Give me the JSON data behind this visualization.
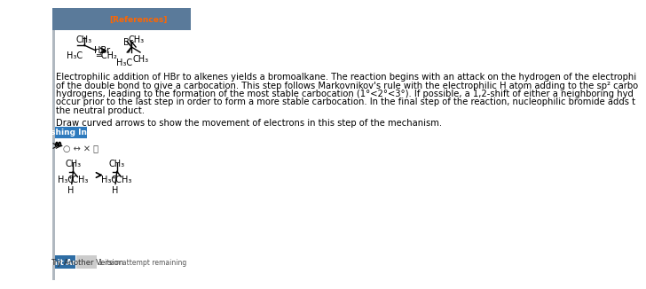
{
  "bg_color": "#f0f0f0",
  "page_bg": "#ffffff",
  "title_bar_color": "#5a7a9a",
  "title_bar_text": "[References]",
  "title_bar_text_color": "#ff6600",
  "title_bar_height": 0.08,
  "body_text_1": "Electrophilic addition of HBr to alkenes yields a bromoalkane. The reaction begins with an attack on the hydrogen of the electrophile\nof the double bond to give a carbocation. This step follows Markovnikov’s rule with the electrophilic H atom adding to the sp² carbo\nhydrogens, leading to the formation of the most stable carbocation (1°<2°<3°). If possible, a 1,2-shift of either a neighboring hyd\noccur prior to the last step in order to form a more stable carbocation. In the final step of the reaction, nucleophilic bromide adds t\nthe neutral product.",
  "instruction_text": "Draw curved arrows to show the movement of electrons in this step of the mechanism.",
  "arrow_btn_color": "#2e7abd",
  "arrow_btn_text": "Arrow-pushing Instructions",
  "arrow_btn_text_color": "#ffffff",
  "left_bar_color": "#b0b8c0",
  "submit_btn_color": "#2e6da4",
  "submit_btn_text": "Submit Answer",
  "try_btn_color": "#cccccc",
  "try_btn_text": "Try Another Version",
  "attempt_text": "1 item attempt remaining",
  "font_size_body": 7.2,
  "font_size_small": 6.0
}
